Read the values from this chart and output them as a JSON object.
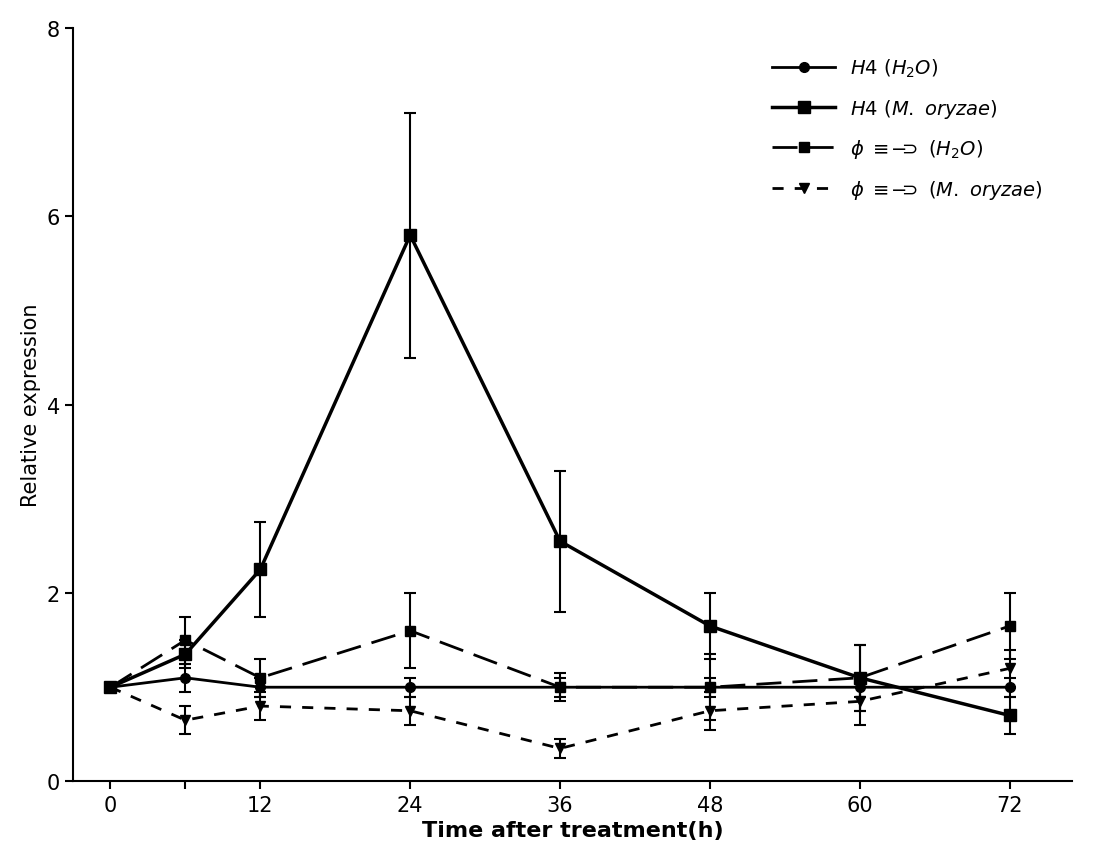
{
  "x": [
    0,
    6,
    12,
    24,
    36,
    48,
    60,
    72
  ],
  "xtick_labels": [
    "0",
    "",
    "12",
    "24",
    "36",
    "48",
    "60",
    "72"
  ],
  "series": {
    "H4_H2O": {
      "y": [
        1.0,
        1.1,
        1.0,
        1.0,
        1.0,
        1.0,
        1.0,
        1.0
      ],
      "yerr": [
        0.0,
        0.15,
        0.1,
        0.1,
        0.1,
        0.1,
        0.1,
        0.1
      ],
      "linestyle": "-",
      "marker": "o",
      "linewidth": 2.0,
      "markersize": 7
    },
    "H4_Moryzae": {
      "y": [
        1.0,
        1.35,
        2.25,
        5.8,
        2.55,
        1.65,
        1.1,
        0.7
      ],
      "yerr": [
        0.0,
        0.15,
        0.5,
        1.3,
        0.75,
        0.35,
        0.35,
        0.2
      ],
      "linestyle": "-",
      "marker": "s",
      "linewidth": 2.5,
      "markersize": 8
    },
    "Zhong_H2O": {
      "y": [
        1.0,
        1.5,
        1.1,
        1.6,
        1.0,
        1.0,
        1.1,
        1.65
      ],
      "yerr": [
        0.0,
        0.25,
        0.2,
        0.4,
        0.15,
        0.35,
        0.35,
        0.35
      ],
      "marker": "s",
      "linewidth": 2.0,
      "markersize": 7,
      "dashes": [
        9,
        4
      ]
    },
    "Zhong_Moryzae": {
      "y": [
        1.0,
        0.65,
        0.8,
        0.75,
        0.35,
        0.75,
        0.85,
        1.2
      ],
      "yerr": [
        0.0,
        0.15,
        0.15,
        0.15,
        0.1,
        0.2,
        0.25,
        0.2
      ],
      "marker": "v",
      "linewidth": 2.0,
      "markersize": 7,
      "dashes": [
        4,
        4
      ]
    }
  },
  "xlabel": "Time after treatment(h)",
  "ylabel": "Relative expression",
  "xlim": [
    -3,
    77
  ],
  "ylim": [
    0,
    8
  ],
  "xticks": [
    0,
    6,
    12,
    24,
    36,
    48,
    60,
    72
  ],
  "yticks": [
    0,
    2,
    4,
    6,
    8
  ],
  "xlabel_fontsize": 16,
  "ylabel_fontsize": 15,
  "tick_fontsize": 15,
  "legend_fontsize": 14,
  "background_color": "#ffffff",
  "color": "#000000"
}
